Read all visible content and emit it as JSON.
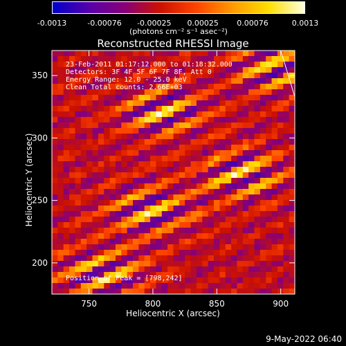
{
  "colorbar": {
    "tick_labels": [
      "-0.0013",
      "-0.00076",
      "-0.00025",
      "0.00025",
      "0.00076",
      "0.0013"
    ],
    "tick_values": [
      -0.0013,
      -0.00076,
      -0.00025,
      0.00025,
      0.00076,
      0.0013
    ],
    "range": [
      -0.0013,
      0.0013
    ],
    "units": "(photons cm⁻² s⁻¹ asec⁻²)",
    "colors": [
      "#0000cc",
      "#5500aa",
      "#880077",
      "#cc1100",
      "#ff4400",
      "#ff9900",
      "#ffdd00",
      "#ffffdd"
    ]
  },
  "title": "Reconstructed RHESSI Image",
  "info_lines": [
    "23-Feb-2011 01:17:12.000 to 01:18:32.000",
    "Detectors: 3F 4F 5F 6F 7F 8F, Att 0",
    "Energy Range: 12.0 - 25.0 keV",
    "Clean    Total counts: 2.66E+03"
  ],
  "peak_label": "Position of Peak = [798,242]",
  "footer_timestamp": "9-May-2022 06:40",
  "chart_data": {
    "type": "heatmap",
    "title": "Reconstructed RHESSI Image",
    "xlabel": "Heliocentric X (arcsec)",
    "ylabel": "Heliocentric Y (arcsec)",
    "xlim": [
      721,
      911
    ],
    "ylim": [
      175,
      370
    ],
    "xticks": [
      750,
      800,
      850,
      900
    ],
    "yticks": [
      200,
      250,
      300,
      350
    ],
    "xtick_labels": [
      "750",
      "800",
      "850",
      "900"
    ],
    "ytick_labels": [
      "200",
      "250",
      "300",
      "350"
    ],
    "value_range": [
      -0.0013,
      0.0013
    ],
    "peak_position": [
      798,
      242
    ],
    "bright_sources": [
      {
        "x": 798,
        "y": 242
      },
      {
        "x": 870,
        "y": 270
      },
      {
        "x": 808,
        "y": 322
      },
      {
        "x": 760,
        "y": 192
      },
      {
        "x": 895,
        "y": 355
      }
    ],
    "limb_arc": [
      [
        900,
        370
      ],
      [
        911,
        333
      ]
    ]
  }
}
